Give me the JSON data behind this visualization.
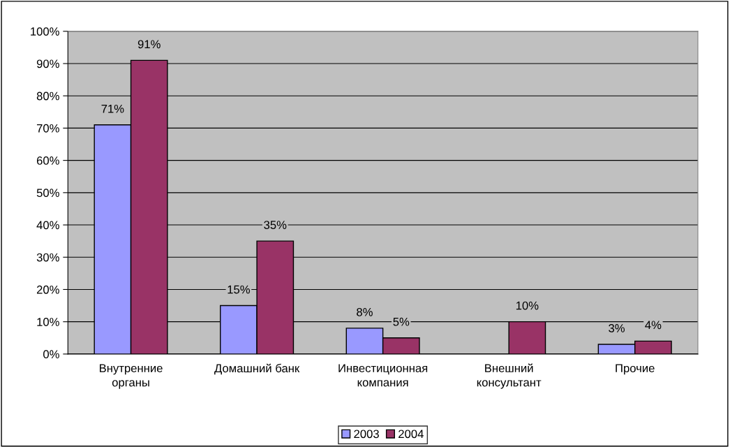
{
  "chart_data": {
    "type": "bar",
    "categories": [
      "Внутренние\nорганы",
      "Домашний банк",
      "Инвестиционная\nкомпания",
      "Внешний\nконсультант",
      "Прочие"
    ],
    "series": [
      {
        "name": "2003",
        "color": "#9999ff",
        "values": [
          71,
          15,
          8,
          null,
          3
        ],
        "value_labels": [
          "71%",
          "15%",
          "8%",
          null,
          "3%"
        ]
      },
      {
        "name": "2004",
        "color": "#993366",
        "values": [
          91,
          35,
          5,
          10,
          4
        ],
        "value_labels": [
          "91%",
          "35%",
          "5%",
          "10%",
          "4%"
        ]
      }
    ],
    "ylim": [
      0,
      100
    ],
    "yticks": [
      {
        "value": 0,
        "label": "0%"
      },
      {
        "value": 10,
        "label": "10%"
      },
      {
        "value": 20,
        "label": "20%"
      },
      {
        "value": 30,
        "label": "30%"
      },
      {
        "value": 40,
        "label": "40%"
      },
      {
        "value": 50,
        "label": "50%"
      },
      {
        "value": 60,
        "label": "60%"
      },
      {
        "value": 70,
        "label": "70%"
      },
      {
        "value": 80,
        "label": "80%"
      },
      {
        "value": 90,
        "label": "90%"
      },
      {
        "value": 100,
        "label": "100%"
      }
    ],
    "grid": "y",
    "legend": "bottom"
  }
}
